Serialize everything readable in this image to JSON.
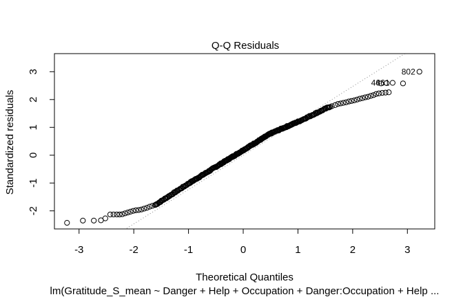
{
  "chart_data": {
    "type": "scatter",
    "title": "Q-Q Residuals",
    "xlabel": "Theoretical Quantiles",
    "ylabel": "Standardized residuals",
    "subtitle": "lm(Gratitude_S_mean ~ Danger + Help + Occupation + Danger:Occupation + Help ...",
    "xlim": [
      -3.45,
      3.5
    ],
    "ylim": [
      -2.65,
      3.65
    ],
    "xticks": [
      "-3",
      "-2",
      "-1",
      "0",
      "1",
      "2",
      "3"
    ],
    "yticks": [
      "-2",
      "-1",
      "0",
      "1",
      "2",
      "3"
    ],
    "reference_line": {
      "style": "dotted",
      "color": "#888888",
      "slope": 1.235,
      "intercept": 0.0
    },
    "point_labels": [
      {
        "text": "802",
        "x": 3.22,
        "y": 3.0
      },
      {
        "text": "461",
        "x": 2.75,
        "y": 2.6
      },
      {
        "text": "46",
        "x": 2.58,
        "y": 2.6
      }
    ],
    "points": {
      "upper_tail": [
        [
          1.62,
          1.76
        ],
        [
          1.68,
          1.8
        ],
        [
          1.73,
          1.84
        ],
        [
          1.78,
          1.86
        ],
        [
          1.83,
          1.88
        ],
        [
          1.88,
          1.9
        ],
        [
          1.93,
          1.93
        ],
        [
          1.98,
          1.95
        ],
        [
          2.03,
          1.97
        ],
        [
          2.08,
          2.0
        ],
        [
          2.13,
          2.03
        ],
        [
          2.18,
          2.05
        ],
        [
          2.23,
          2.08
        ],
        [
          2.28,
          2.1
        ],
        [
          2.33,
          2.13
        ],
        [
          2.38,
          2.16
        ],
        [
          2.43,
          2.2
        ],
        [
          2.48,
          2.22
        ],
        [
          2.54,
          2.24
        ],
        [
          2.6,
          2.25
        ],
        [
          2.66,
          2.26
        ],
        [
          2.52,
          2.58
        ],
        [
          2.62,
          2.59
        ],
        [
          2.73,
          2.6
        ],
        [
          2.92,
          2.58
        ],
        [
          3.22,
          3.0
        ]
      ],
      "lower_tail": [
        [
          -3.22,
          -2.43
        ],
        [
          -2.93,
          -2.35
        ],
        [
          -2.73,
          -2.35
        ],
        [
          -2.6,
          -2.34
        ],
        [
          -2.52,
          -2.27
        ],
        [
          -2.43,
          -2.13
        ],
        [
          -2.37,
          -2.13
        ],
        [
          -2.31,
          -2.13
        ],
        [
          -2.26,
          -2.13
        ],
        [
          -2.21,
          -2.12
        ],
        [
          -2.16,
          -2.09
        ],
        [
          -2.11,
          -2.06
        ],
        [
          -2.06,
          -2.03
        ],
        [
          -2.01,
          -2.0
        ],
        [
          -1.96,
          -1.98
        ],
        [
          -1.91,
          -1.97
        ],
        [
          -1.86,
          -1.95
        ],
        [
          -1.81,
          -1.92
        ],
        [
          -1.76,
          -1.89
        ],
        [
          -1.71,
          -1.85
        ],
        [
          -1.66,
          -1.82
        ],
        [
          -1.61,
          -1.79
        ]
      ],
      "body_segments": [
        {
          "x": [
            -1.6,
            -1.0
          ],
          "y": [
            -1.78,
            -1.02
          ],
          "n": 40
        },
        {
          "x": [
            -1.0,
            -0.5
          ],
          "y": [
            -1.02,
            -0.42
          ],
          "n": 40
        },
        {
          "x": [
            -0.5,
            0.5
          ],
          "y": [
            -0.42,
            0.78
          ],
          "n": 100
        },
        {
          "x": [
            0.5,
            1.0
          ],
          "y": [
            0.78,
            1.2
          ],
          "n": 40
        },
        {
          "x": [
            1.0,
            1.6
          ],
          "y": [
            1.2,
            1.76
          ],
          "n": 40
        }
      ]
    }
  }
}
